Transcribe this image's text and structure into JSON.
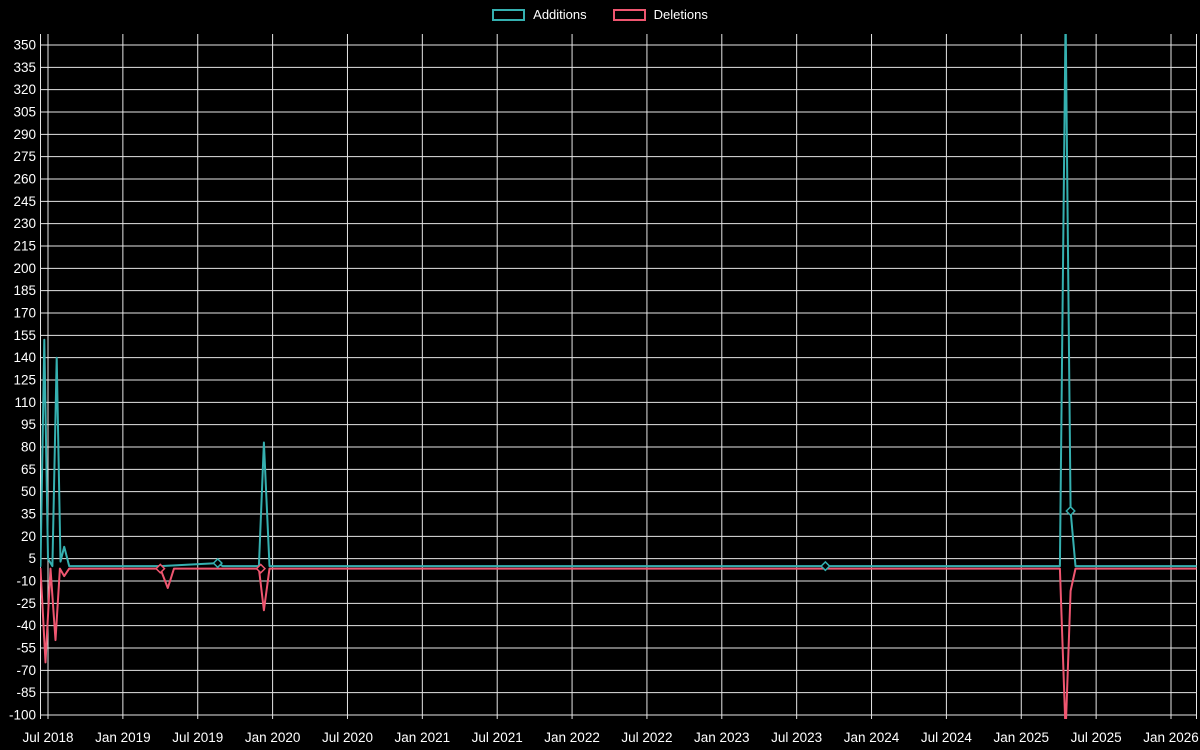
{
  "chart_data": {
    "type": "line",
    "title": "",
    "legend": {
      "position": "top-center",
      "entries": [
        "Additions",
        "Deletions"
      ]
    },
    "colors": {
      "background": "#000000",
      "grid": "#ffffff",
      "text": "#ffffff"
    },
    "x_axis": {
      "unit": "months since Jul 2018",
      "tick_months": [
        0,
        6,
        12,
        18,
        24,
        30,
        36,
        42,
        48,
        54,
        60,
        66,
        72,
        78,
        84,
        90
      ],
      "tick_labels": [
        "Jul 2018",
        "Jan 2019",
        "Jul 2019",
        "Jan 2020",
        "Jul 2020",
        "Jan 2021",
        "Jul 2021",
        "Jan 2022",
        "Jul 2022",
        "Jan 2023",
        "Jul 2023",
        "Jan 2024",
        "Jul 2024",
        "Jan 2025",
        "Jul 2025",
        "Jan 2026"
      ]
    },
    "y_axis": {
      "min": -100,
      "max": 350,
      "step": 15,
      "tick_labels": [
        350,
        335,
        320,
        305,
        290,
        275,
        260,
        245,
        230,
        215,
        200,
        185,
        170,
        155,
        140,
        125,
        110,
        95,
        80,
        65,
        50,
        35,
        20,
        5,
        -10,
        -25,
        -40,
        -55,
        -70,
        -85,
        -100
      ]
    },
    "series": [
      {
        "name": "Additions",
        "color": "#35b0b0",
        "points": [
          [
            -0.6,
            0
          ],
          [
            -0.3,
            152
          ],
          [
            0.0,
            5
          ],
          [
            0.35,
            0
          ],
          [
            0.7,
            140
          ],
          [
            1.0,
            3
          ],
          [
            1.3,
            13
          ],
          [
            1.7,
            0
          ],
          [
            9,
            0
          ],
          [
            13.6,
            2
          ],
          [
            14,
            0
          ],
          [
            16.9,
            0
          ],
          [
            17.3,
            83
          ],
          [
            17.75,
            0
          ],
          [
            62.3,
            0
          ],
          [
            81.1,
            0
          ],
          [
            81.55,
            370
          ],
          [
            81.95,
            37
          ],
          [
            82.35,
            0
          ],
          [
            92,
            0
          ]
        ]
      },
      {
        "name": "Deletions",
        "color": "#ef5670",
        "points": [
          [
            -0.6,
            0
          ],
          [
            -0.2,
            -63
          ],
          [
            0.2,
            0
          ],
          [
            0.6,
            -48
          ],
          [
            0.95,
            0
          ],
          [
            1.3,
            -5
          ],
          [
            1.7,
            0
          ],
          [
            9,
            0
          ],
          [
            9.6,
            -13
          ],
          [
            10.1,
            0
          ],
          [
            13.6,
            0
          ],
          [
            16.9,
            0
          ],
          [
            17.3,
            -28
          ],
          [
            17.75,
            0
          ],
          [
            62.3,
            0
          ],
          [
            81.1,
            0
          ],
          [
            81.55,
            -110
          ],
          [
            81.95,
            -15
          ],
          [
            82.35,
            0
          ],
          [
            92,
            0
          ]
        ]
      }
    ],
    "markers": [
      {
        "series": "Deletions",
        "month": 9,
        "value": 0
      },
      {
        "series": "Additions",
        "month": 13.6,
        "value": 2
      },
      {
        "series": "Deletions",
        "month": 17.05,
        "value": 0
      },
      {
        "series": "Additions",
        "month": 62.3,
        "value": 0
      },
      {
        "series": "Additions",
        "month": 81.95,
        "value": 37
      }
    ],
    "clipped_peaks": {
      "additions_max": "peak near Jun 2025 exceeds 350 and is clipped at plot top (recorded as 370)",
      "deletions_min": "trough near Jun 2025 exceeds -100 and is clipped at plot bottom (recorded as -110)"
    }
  }
}
